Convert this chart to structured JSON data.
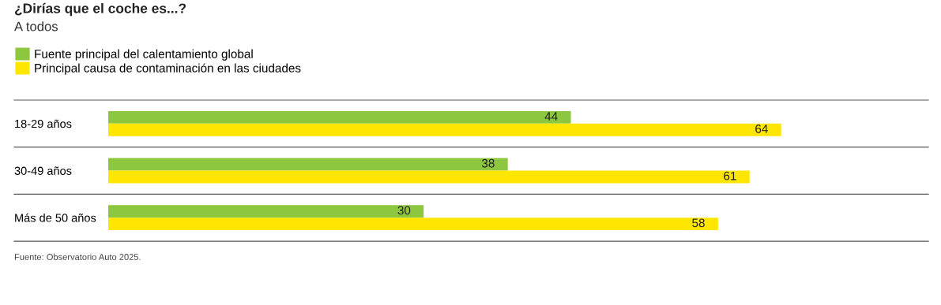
{
  "chart_data": {
    "type": "bar",
    "orientation": "horizontal",
    "title": "¿Dirías que el coche es...?",
    "subtitle": "A todos",
    "categories": [
      "18-29 años",
      "30-49 años",
      "Más de 50 años"
    ],
    "series": [
      {
        "name": "Fuente principal del calentamiento global",
        "color": "#8dc63f",
        "values": [
          44,
          38,
          30
        ]
      },
      {
        "name": "Principal causa de contaminación en las ciudades",
        "color": "#ffe600",
        "values": [
          64,
          61,
          58
        ]
      }
    ],
    "xlim": [
      0,
      78
    ],
    "data_labels": true,
    "legend": "top left",
    "grid": false,
    "tick_labels": "y",
    "annotations": [
      "Fuente: Observatorio Auto 2025."
    ]
  }
}
